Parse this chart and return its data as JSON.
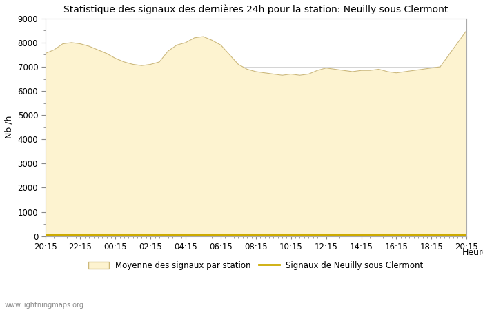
{
  "title": "Statistique des signaux des dernières 24h pour la station: Neuilly sous Clermont",
  "xlabel": "Heure",
  "ylabel": "Nb /h",
  "ylim": [
    0,
    9000
  ],
  "yticks": [
    0,
    1000,
    2000,
    3000,
    4000,
    5000,
    6000,
    7000,
    8000,
    9000
  ],
  "xtick_labels": [
    "20:15",
    "22:15",
    "00:15",
    "02:15",
    "04:15",
    "06:15",
    "08:15",
    "10:15",
    "12:15",
    "14:15",
    "16:15",
    "18:15",
    "20:15"
  ],
  "fill_color": "#fdf3d0",
  "fill_edge_color": "#ccb87a",
  "line_color": "#ccaa00",
  "watermark": "www.lightningmaps.org",
  "legend_fill_label": "Moyenne des signaux par station",
  "legend_line_label": "Signaux de Neuilly sous Clermont",
  "x_values": [
    0,
    1,
    2,
    3,
    4,
    5,
    6,
    7,
    8,
    9,
    10,
    11,
    12,
    13,
    14,
    15,
    16,
    17,
    18,
    19,
    20,
    21,
    22,
    23,
    24,
    25,
    26,
    27,
    28,
    29,
    30,
    31,
    32,
    33,
    34,
    35,
    36,
    37,
    38,
    39,
    40,
    41,
    42,
    43,
    44,
    45,
    46,
    47,
    48
  ],
  "area_values": [
    7550,
    7700,
    7950,
    8000,
    7950,
    7850,
    7700,
    7550,
    7350,
    7200,
    7100,
    7050,
    7100,
    7200,
    7650,
    7900,
    8000,
    8200,
    8250,
    8100,
    7900,
    7500,
    7100,
    6900,
    6800,
    6750,
    6700,
    6650,
    6700,
    6650,
    6700,
    6850,
    6950,
    6900,
    6850,
    6800,
    6850,
    6850,
    6900,
    6800,
    6750,
    6800,
    6850,
    6900,
    6950,
    7000,
    7500,
    8000,
    8500
  ],
  "line_values": [
    50,
    50,
    50,
    50,
    50,
    50,
    50,
    50,
    50,
    50,
    50,
    50,
    50,
    50,
    50,
    50,
    50,
    50,
    50,
    50,
    50,
    50,
    50,
    50,
    50,
    50,
    50,
    50,
    50,
    50,
    50,
    50,
    50,
    50,
    50,
    50,
    50,
    50,
    50,
    50,
    50,
    50,
    50,
    50,
    50,
    50,
    50,
    50,
    50
  ],
  "background_color": "#ffffff",
  "grid_color": "#cccccc",
  "title_fontsize": 10,
  "axis_fontsize": 9,
  "tick_fontsize": 8.5
}
